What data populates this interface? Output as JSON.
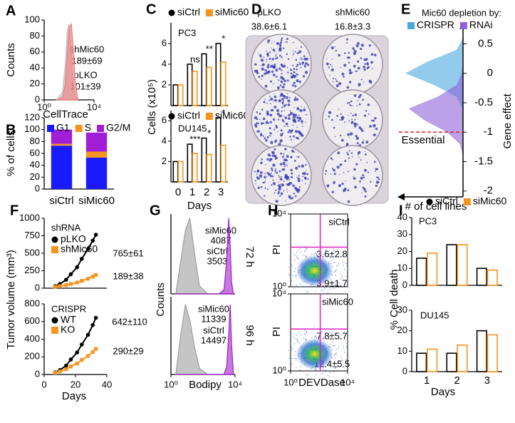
{
  "chart_data": [
    {
      "panel": "A",
      "type": "area",
      "x_label": "CellTrace",
      "y_label": "Counts",
      "xlog": true,
      "xlim": [
        1,
        10000
      ],
      "xticks": [
        {
          "value": 1,
          "label": "10⁰"
        },
        {
          "value": 10000,
          "label": "10⁴"
        }
      ],
      "ylim": [
        0,
        100
      ],
      "yticks": [
        0,
        20,
        40,
        60,
        80,
        100
      ],
      "x": [
        10,
        30,
        50,
        70,
        100,
        150,
        200,
        300,
        500
      ],
      "series": [
        {
          "color": "#bdbdbd",
          "values": [
            0,
            10,
            45,
            85,
            95,
            60,
            25,
            5,
            0
          ]
        },
        {
          "color": "#f0787a",
          "values": [
            0,
            3,
            20,
            55,
            90,
            95,
            70,
            25,
            0
          ]
        }
      ],
      "annotations": [
        {
          "text": "shMic60",
          "color": "#e8202a"
        },
        {
          "text": "189±69",
          "color": "#e8202a"
        },
        {
          "text": "pLKO",
          "color": "#a0a0a0"
        },
        {
          "text": "101±39",
          "color": "#a0a0a0"
        }
      ]
    },
    {
      "panel": "B",
      "type": "stacked_bar",
      "y_label": "% of cells",
      "categories": [
        "siCtrl",
        "siMic60"
      ],
      "ylim": [
        0,
        120
      ],
      "yticks": [
        0,
        20,
        40,
        60,
        80,
        100,
        120
      ],
      "series": [
        {
          "name": "G1",
          "color": "#1a1aff",
          "values": [
            73,
            53
          ]
        },
        {
          "name": "S",
          "color": "#f7941d",
          "values": [
            3,
            10
          ]
        },
        {
          "name": "G2/M",
          "color": "#a01fd6",
          "values": [
            24,
            32
          ]
        }
      ]
    },
    {
      "panel": "C",
      "type": "bar",
      "title": "PC3",
      "y_label": "Cells (x10⁵)",
      "categories": [
        null,
        null,
        null,
        null
      ],
      "ylim": [
        0,
        8
      ],
      "yticks": [
        2,
        4,
        6
      ],
      "series": [
        {
          "name": "siCtrl",
          "color": "#000000",
          "marker": "circle",
          "values": [
            2,
            4,
            5,
            6
          ]
        },
        {
          "name": "siMic60",
          "color": "#f7941d",
          "marker": "square",
          "values": [
            2,
            3.3,
            3.7,
            4.2
          ]
        }
      ],
      "significance": [
        null,
        "ns",
        "**",
        "*"
      ]
    },
    {
      "type": "bar",
      "title": "DU145",
      "x_label": "Days",
      "categories": [
        "0",
        "1",
        "2",
        "3"
      ],
      "ylim": [
        0,
        7
      ],
      "yticks": [
        2,
        4,
        6
      ],
      "series": [
        {
          "name": "siCtrl",
          "color": "#000000",
          "marker": "circle",
          "values": [
            2,
            3.7,
            4.3,
            6.3
          ]
        },
        {
          "name": "siMic60",
          "color": "#f7941d",
          "marker": "square",
          "values": [
            2,
            2.8,
            2.7,
            3.6
          ]
        }
      ],
      "significance": [
        null,
        "***",
        "*",
        "*"
      ]
    },
    {
      "panel": "D",
      "type": "image",
      "annotations": [
        {
          "text": "pLKO",
          "color": "#000000"
        },
        {
          "text": "38.6±6.1",
          "color": "#000000"
        },
        {
          "text": "shMic60",
          "color": "#f7941d"
        },
        {
          "text": "16.8±3.3",
          "color": "#f7941d"
        }
      ]
    },
    {
      "panel": "E",
      "type": "density",
      "legend_title": "Mic60 depletion by:",
      "y_label": "Gene effect",
      "x_label": "# of cell lines",
      "ylim": [
        -2.1,
        0.7
      ],
      "yticks": [
        0.5,
        0,
        -0.5,
        -1,
        -1.5,
        -2
      ],
      "y": [
        -1.4,
        -1.2,
        -1,
        -0.8,
        -0.6,
        -0.4,
        -0.2,
        0,
        0.2,
        0.4,
        0.6
      ],
      "series": [
        {
          "name": "CRISPR",
          "color": "#4aa8e0",
          "values": [
            0,
            0,
            0,
            0,
            1,
            10,
            45,
            90,
            55,
            10,
            0
          ]
        },
        {
          "name": "RNAi",
          "color": "#8e63d8",
          "values": [
            0,
            5,
            25,
            60,
            85,
            40,
            10,
            2,
            0,
            0,
            0
          ]
        }
      ],
      "threshold": {
        "value": -1,
        "label": "Essential"
      }
    },
    {
      "panel": "F",
      "type": "line",
      "title": "shRNA",
      "y_label": "Tumor volume (mm³)",
      "x": [
        7,
        10,
        14,
        17,
        21,
        24,
        28,
        31,
        33
      ],
      "xlim": [
        0,
        40
      ],
      "ylim": [
        0,
        1000
      ],
      "yticks": [
        0,
        250,
        500,
        750,
        1000
      ],
      "series": [
        {
          "name": "pLKO",
          "color": "#000000",
          "marker": "circle",
          "values": [
            30,
            60,
            120,
            200,
            300,
            420,
            560,
            680,
            765
          ]
        },
        {
          "name": "shMic60",
          "color": "#f7941d",
          "marker": "square",
          "values": [
            20,
            30,
            45,
            60,
            80,
            105,
            135,
            165,
            189
          ]
        }
      ],
      "annotations": [
        {
          "text": "765±61",
          "color": "#000000"
        },
        {
          "text": "189±38",
          "color": "#f7941d"
        }
      ]
    },
    {
      "type": "line",
      "title": "CRISPR",
      "x_label": "Days",
      "x": [
        7,
        10,
        14,
        17,
        21,
        24,
        28,
        31,
        33
      ],
      "xlim": [
        0,
        40
      ],
      "xticks": [
        0,
        20,
        40
      ],
      "ylim": [
        0,
        800
      ],
      "yticks": [
        0,
        200,
        400,
        600,
        800
      ],
      "series": [
        {
          "name": "WT",
          "color": "#000000",
          "marker": "circle",
          "values": [
            25,
            50,
            100,
            170,
            250,
            340,
            450,
            560,
            642
          ]
        },
        {
          "name": "KO",
          "color": "#f7941d",
          "marker": "square",
          "values": [
            20,
            35,
            60,
            90,
            125,
            165,
            210,
            255,
            290
          ]
        }
      ],
      "annotations": [
        {
          "text": "642±110",
          "color": "#000000"
        },
        {
          "text": "290±29",
          "color": "#f7941d"
        }
      ]
    },
    {
      "panel": "G",
      "type": "area",
      "y_label": "Counts",
      "xlog": true,
      "xlim": [
        1,
        10000
      ],
      "ylim": [
        0,
        100
      ],
      "x": [
        2,
        4,
        8,
        15,
        30,
        60,
        200,
        1000,
        2000,
        3000,
        4000,
        5000,
        6000,
        8000
      ],
      "series": [
        {
          "color": "#9e9e9e",
          "values": [
            0,
            40,
            80,
            95,
            50,
            10,
            0,
            0,
            0,
            0,
            0,
            0,
            0,
            0
          ]
        },
        {
          "color": "#a020c8",
          "values": [
            0,
            0,
            0,
            0,
            0,
            0,
            0,
            0,
            5,
            40,
            95,
            60,
            15,
            0
          ]
        }
      ],
      "annotations": [
        {
          "text": "siMic60",
          "color": "#a020c8"
        },
        {
          "text": "4087",
          "color": "#a020c8"
        },
        {
          "text": "siCtrl",
          "color": "#a020c8"
        },
        {
          "text": "3503",
          "color": "#a020c8"
        }
      ],
      "side_label": "72 h"
    },
    {
      "type": "area",
      "x_label": "Bodipy",
      "xlog": true,
      "xlim": [
        1,
        10000
      ],
      "xticks": [
        {
          "value": 1,
          "label": "10⁰"
        },
        {
          "value": 10000,
          "label": "10⁴"
        }
      ],
      "ylim": [
        0,
        100
      ],
      "x": [
        2,
        4,
        8,
        15,
        30,
        60,
        200,
        1000,
        2000,
        3000,
        4000,
        5000,
        6000,
        8000
      ],
      "series": [
        {
          "color": "#9e9e9e",
          "values": [
            0,
            50,
            90,
            70,
            35,
            8,
            0,
            0,
            0,
            0,
            0,
            0,
            0,
            0
          ]
        },
        {
          "color": "#a020c8",
          "values": [
            0,
            0,
            0,
            0,
            0,
            0,
            0,
            0,
            0,
            10,
            50,
            90,
            40,
            0
          ]
        }
      ],
      "annotations": [
        {
          "text": "siMic60",
          "color": "#a020c8"
        },
        {
          "text": "11339",
          "color": "#a020c8"
        },
        {
          "text": "siCtrl",
          "color": "#a020c8"
        },
        {
          "text": "14497",
          "color": "#a020c8"
        }
      ],
      "side_label": "96 h"
    },
    {
      "panel": "H",
      "type": "quadrant",
      "y_label": "PI",
      "xlog": true,
      "ylog": true,
      "xlim": [
        1,
        10000
      ],
      "ylim": [
        1,
        10000
      ],
      "yticks": [
        {
          "value": 1,
          "label": "10⁰"
        },
        {
          "value": 10000,
          "label": "10⁴"
        }
      ],
      "gate": {
        "x": 120,
        "y": 150
      },
      "annotations": [
        {
          "text": "siCtrl",
          "color": "#000000"
        },
        {
          "text": "3.6±2.8",
          "color": "#000000"
        },
        {
          "text": "3.9±1.7",
          "color": "#000000"
        }
      ]
    },
    {
      "type": "quadrant",
      "y_label": "PI",
      "x_label": "DEVDase",
      "xlog": true,
      "ylog": true,
      "xlim": [
        1,
        10000
      ],
      "ylim": [
        1,
        10000
      ],
      "xticks": [
        {
          "value": 1,
          "label": "10⁰"
        },
        {
          "value": 10000,
          "label": "10⁴"
        }
      ],
      "yticks": [
        {
          "value": 1,
          "label": "10⁰"
        },
        {
          "value": 10000,
          "label": "10⁴"
        }
      ],
      "gate": {
        "x": 120,
        "y": 150
      },
      "annotations": [
        {
          "text": "siMic60",
          "color": "#f7941d"
        },
        {
          "text": "7.8±5.7",
          "color": "#f7941d"
        },
        {
          "text": "12.4±5.5",
          "color": "#f7941d"
        }
      ]
    },
    {
      "panel": "I",
      "type": "bar",
      "title": "PC3",
      "y_label": "% Cell death",
      "categories": [
        null,
        null,
        null
      ],
      "ylim": [
        0,
        40
      ],
      "yticks": [
        0,
        10,
        20,
        30,
        40
      ],
      "series": [
        {
          "name": "siCtrl",
          "color": "#000000",
          "marker": "circle",
          "values": [
            16,
            24,
            10
          ]
        },
        {
          "name": "siMic60",
          "color": "#f7941d",
          "marker": "square",
          "values": [
            19,
            24,
            9
          ]
        }
      ]
    },
    {
      "type": "bar",
      "title": "DU145",
      "x_label": "Days",
      "categories": [
        "1",
        "2",
        "3"
      ],
      "ylim": [
        0,
        30
      ],
      "yticks": [
        0,
        10,
        20,
        30
      ],
      "series": [
        {
          "color": "#000000",
          "values": [
            9,
            9,
            20
          ]
        },
        {
          "color": "#f7941d",
          "values": [
            11,
            13,
            18
          ]
        }
      ]
    }
  ]
}
